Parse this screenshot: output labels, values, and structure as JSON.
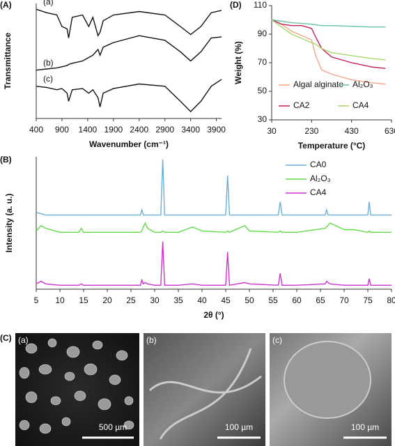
{
  "chart_data": [
    {
      "type": "line",
      "panel_label": "(A)",
      "xlabel": "Wavenumber (cm⁻¹)",
      "ylabel": "Transmittance",
      "annotations": [
        "(a)",
        "(b)",
        "(c)"
      ],
      "x": [
        400,
        600,
        800,
        900,
        1000,
        1030,
        1100,
        1300,
        1420,
        1500,
        1600,
        1640,
        1700,
        1900,
        2400,
        2900,
        3200,
        3400,
        3600,
        3800,
        4000
      ],
      "series": [
        {
          "color": "#111111",
          "values": [
            95,
            92,
            90,
            80,
            78,
            70,
            88,
            90,
            80,
            88,
            72,
            75,
            85,
            90,
            93,
            90,
            80,
            73,
            80,
            92,
            94
          ]
        },
        {
          "color": "#111111",
          "values": [
            42,
            43,
            44,
            45,
            46,
            47,
            48,
            50,
            53,
            55,
            60,
            55,
            62,
            66,
            72,
            68,
            58,
            50,
            58,
            70,
            71
          ]
        },
        {
          "color": "#111111",
          "values": [
            28,
            27,
            25,
            26,
            22,
            15,
            25,
            26,
            22,
            25,
            18,
            10,
            22,
            26,
            30,
            28,
            15,
            6,
            15,
            28,
            34
          ]
        }
      ],
      "xlim": [
        400,
        4000
      ],
      "xticks": [
        400,
        900,
        1400,
        1900,
        2400,
        2900,
        3400,
        3900
      ],
      "ylim": [
        0,
        100
      ]
    },
    {
      "type": "line",
      "panel_label": "(D)",
      "xlabel": "Temperature (°C)",
      "ylabel": "Weight (%)",
      "x": [
        30,
        80,
        130,
        180,
        230,
        250,
        280,
        330,
        430,
        530,
        600
      ],
      "series": [
        {
          "name": "Algal alginate",
          "color": "#f4a582",
          "values": [
            100,
            97,
            92,
            89,
            86,
            75,
            65,
            62,
            58,
            56,
            55
          ]
        },
        {
          "name": "Al₂O₃",
          "color": "#66c2a5",
          "values": [
            100,
            99,
            98,
            97.5,
            97,
            96.5,
            96,
            96,
            95.5,
            95,
            95
          ]
        },
        {
          "name": "CA2",
          "color": "#c51b5d",
          "values": [
            100,
            97,
            96,
            96,
            94,
            88,
            80,
            74,
            70,
            67,
            66
          ]
        },
        {
          "name": "CA4",
          "color": "#a6d96a",
          "values": [
            100,
            95,
            90,
            87,
            84,
            83,
            80,
            77,
            75,
            73,
            72
          ]
        }
      ],
      "xlim": [
        30,
        630
      ],
      "xticks": [
        30,
        230,
        430,
        630
      ],
      "ylim": [
        30,
        110
      ],
      "yticks": [
        30,
        50,
        70,
        90,
        110
      ]
    },
    {
      "type": "line",
      "panel_label": "(B)",
      "xlabel": "2θ (°)",
      "ylabel": "Intensity (a. u.)",
      "x": [
        5,
        6,
        7,
        10,
        14,
        14.5,
        15,
        20,
        25,
        27,
        27.3,
        27.6,
        28,
        28.5,
        30,
        31.3,
        31.7,
        32.1,
        35,
        38,
        40,
        45,
        45.4,
        45.8,
        49,
        50,
        56.1,
        56.5,
        56.9,
        60,
        66,
        66.3,
        66.6,
        67,
        70,
        72,
        75,
        75.3,
        75.6,
        78,
        80
      ],
      "series": [
        {
          "name": "CA0",
          "color": "#6baed6",
          "values": [
            58,
            57,
            56,
            56,
            56,
            56,
            56,
            56,
            56,
            56,
            60,
            56,
            56,
            56,
            56,
            56,
            98,
            56,
            56,
            56,
            56,
            56,
            86,
            56,
            56,
            56,
            56,
            66,
            56,
            56,
            56,
            60,
            56,
            56,
            56,
            56,
            56,
            66,
            56,
            56,
            56
          ]
        },
        {
          "name": "Al₂O₃",
          "color": "#5fdc46",
          "values": [
            44,
            48,
            46,
            43,
            43,
            46,
            43,
            43,
            43,
            43,
            44,
            47,
            50,
            46,
            43,
            43,
            44,
            43,
            43,
            47,
            44,
            43,
            44,
            43,
            48,
            44,
            43,
            44,
            43,
            43,
            46,
            47,
            48,
            50,
            45,
            45,
            43,
            44,
            43,
            43,
            43
          ]
        },
        {
          "name": "CA4",
          "color": "#cc33cc",
          "values": [
            4,
            6,
            4,
            3,
            3,
            4,
            3,
            3,
            3,
            3,
            7,
            4,
            5,
            4,
            3,
            3,
            36,
            3,
            3,
            4,
            3,
            3,
            28,
            3,
            5,
            4,
            3,
            12,
            3,
            3,
            4,
            6,
            5,
            4,
            3,
            3,
            3,
            8,
            3,
            3,
            3
          ]
        }
      ],
      "xlim": [
        5,
        80
      ],
      "xticks": [
        5,
        10,
        15,
        20,
        25,
        30,
        35,
        40,
        45,
        50,
        55,
        60,
        65,
        70,
        75,
        80
      ],
      "ylim": [
        0,
        100
      ]
    }
  ],
  "sem_panel": {
    "label": "(C)",
    "images": [
      {
        "label": "(a)",
        "scale": "500 µm"
      },
      {
        "label": "(b)",
        "scale": "100 µm"
      },
      {
        "label": "(c)",
        "scale": "100 µm"
      }
    ]
  }
}
